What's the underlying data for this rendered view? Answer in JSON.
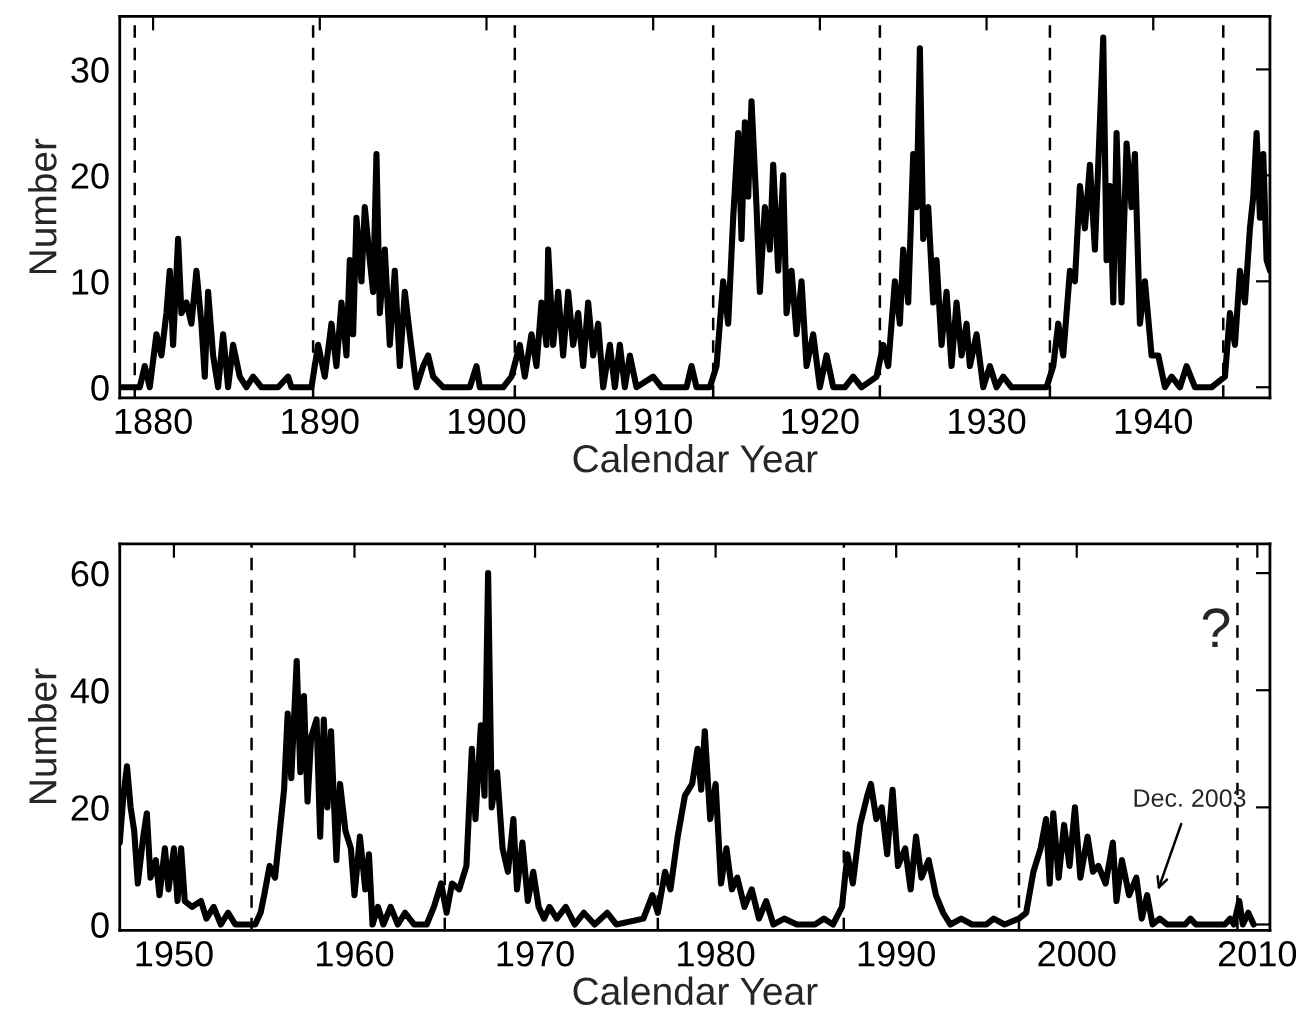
{
  "chart_data": [
    {
      "type": "line",
      "xlabel": "Calendar Year",
      "ylabel": "Number",
      "xlim": [
        1878,
        1947
      ],
      "ylim": [
        -1,
        35
      ],
      "xticks": [
        1880,
        1890,
        1900,
        1910,
        1920,
        1930,
        1940
      ],
      "yticks": [
        0,
        10,
        20,
        30
      ],
      "grid": false,
      "legend": false,
      "marker": "none",
      "line_style": "solid",
      "series": [
        {
          "color": "#000000",
          "x": [
            1878,
            1879.2,
            1879.5,
            1879.8,
            1880.2,
            1880.5,
            1880.8,
            1881.0,
            1881.2,
            1881.5,
            1881.7,
            1882.0,
            1882.3,
            1882.6,
            1882.9,
            1883.1,
            1883.3,
            1883.6,
            1883.9,
            1884.2,
            1884.5,
            1884.8,
            1885.2,
            1885.6,
            1886.0,
            1886.5,
            1887.5,
            1888.1,
            1888.3,
            1889.5,
            1889.9,
            1890.3,
            1890.7,
            1891.0,
            1891.3,
            1891.6,
            1891.8,
            1892.0,
            1892.2,
            1892.5,
            1892.7,
            1893.0,
            1893.2,
            1893.4,
            1893.6,
            1893.9,
            1894.2,
            1894.5,
            1894.8,
            1895.1,
            1895.4,
            1895.8,
            1896.2,
            1896.5,
            1896.8,
            1897.4,
            1899.0,
            1899.4,
            1899.6,
            1901.0,
            1901.5,
            1902.0,
            1902.3,
            1902.7,
            1903.0,
            1903.3,
            1903.6,
            1903.7,
            1904.0,
            1904.3,
            1904.6,
            1904.9,
            1905.2,
            1905.5,
            1905.8,
            1906.1,
            1906.4,
            1906.7,
            1907.0,
            1907.4,
            1907.7,
            1908.0,
            1908.3,
            1908.6,
            1909.0,
            1910.0,
            1910.5,
            1912.0,
            1912.3,
            1912.6,
            1913.4,
            1913.8,
            1914.2,
            1914.5,
            1914.8,
            1915.1,
            1915.3,
            1915.5,
            1915.7,
            1915.9,
            1916.2,
            1916.4,
            1916.7,
            1917.0,
            1917.2,
            1917.5,
            1917.8,
            1918.0,
            1918.3,
            1918.6,
            1918.9,
            1919.2,
            1919.6,
            1920.0,
            1920.4,
            1920.8,
            1921.5,
            1922.0,
            1922.5,
            1923.4,
            1923.8,
            1924.1,
            1924.5,
            1924.8,
            1925.0,
            1925.3,
            1925.6,
            1925.8,
            1926.0,
            1926.2,
            1926.5,
            1926.8,
            1927.0,
            1927.3,
            1927.6,
            1927.9,
            1928.2,
            1928.5,
            1928.8,
            1929.0,
            1929.4,
            1929.8,
            1930.2,
            1930.6,
            1931.0,
            1931.5,
            1933.6,
            1934.0,
            1934.3,
            1934.6,
            1935.0,
            1935.3,
            1935.6,
            1935.9,
            1936.2,
            1936.5,
            1936.7,
            1937.0,
            1937.2,
            1937.4,
            1937.6,
            1937.8,
            1938.1,
            1938.4,
            1938.7,
            1938.9,
            1939.2,
            1939.5,
            1939.9,
            1940.3,
            1940.7,
            1941.1,
            1941.6,
            1942.0,
            1942.5,
            1943.5,
            1944.3,
            1944.6,
            1944.9,
            1945.2,
            1945.5,
            1945.8,
            1946.0,
            1946.2,
            1946.4,
            1946.6,
            1946.8,
            1947.0
          ],
          "values": [
            0,
            0,
            2,
            0,
            5,
            3,
            7,
            11,
            4,
            14,
            7,
            8,
            6,
            11,
            6,
            1,
            9,
            3,
            0,
            5,
            0,
            4,
            1,
            0,
            1,
            0,
            0,
            1,
            0,
            0,
            4,
            1,
            6,
            2,
            8,
            3,
            12,
            5,
            16,
            10,
            17,
            12,
            9,
            22,
            7,
            13,
            4,
            11,
            2,
            9,
            5,
            0,
            2,
            3,
            1,
            0,
            0,
            2,
            0,
            0,
            1,
            4,
            1,
            5,
            2,
            8,
            4,
            13,
            4,
            9,
            3,
            9,
            4,
            7,
            2,
            8,
            3,
            6,
            0,
            4,
            0,
            4,
            0,
            3,
            0,
            1,
            0,
            0,
            2,
            0,
            0,
            2,
            10,
            6,
            16,
            24,
            14,
            25,
            18,
            27,
            17,
            9,
            17,
            13,
            21,
            11,
            20,
            7,
            11,
            5,
            10,
            2,
            5,
            0,
            3,
            0,
            0,
            1,
            0,
            1,
            4,
            2,
            10,
            6,
            13,
            8,
            22,
            17,
            32,
            14,
            17,
            8,
            12,
            4,
            9,
            2,
            8,
            3,
            6,
            2,
            5,
            0,
            2,
            0,
            1,
            0,
            0,
            2,
            6,
            3,
            11,
            10,
            19,
            15,
            21,
            13,
            21,
            33,
            12,
            19,
            8,
            24,
            8,
            23,
            17,
            22,
            6,
            10,
            3,
            3,
            0,
            1,
            0,
            2,
            0,
            0,
            1,
            7,
            4,
            11,
            8,
            15,
            18,
            24,
            16,
            22,
            12,
            11
          ]
        }
      ],
      "ref_lines": [
        {
          "axis": "x",
          "value": 1878.9,
          "color": "#000000",
          "line_style": "dashed"
        },
        {
          "axis": "x",
          "value": 1889.6,
          "color": "#000000",
          "line_style": "dashed"
        },
        {
          "axis": "x",
          "value": 1901.7,
          "color": "#000000",
          "line_style": "dashed"
        },
        {
          "axis": "x",
          "value": 1913.6,
          "color": "#000000",
          "line_style": "dashed"
        },
        {
          "axis": "x",
          "value": 1923.6,
          "color": "#000000",
          "line_style": "dashed"
        },
        {
          "axis": "x",
          "value": 1933.8,
          "color": "#000000",
          "line_style": "dashed"
        },
        {
          "axis": "x",
          "value": 1944.2,
          "color": "#000000",
          "line_style": "dashed"
        }
      ]
    },
    {
      "type": "line",
      "xlabel": "Calendar Year",
      "ylabel": "Number",
      "xlim": [
        1947,
        2010.7
      ],
      "ylim": [
        -1,
        65
      ],
      "xticks": [
        1950,
        1960,
        1970,
        1980,
        1990,
        2000,
        2010
      ],
      "yticks": [
        0,
        20,
        40,
        60
      ],
      "grid": false,
      "legend": false,
      "marker": "none",
      "line_style": "solid",
      "series": [
        {
          "color": "#000000",
          "x": [
            1947.0,
            1947.2,
            1947.4,
            1947.6,
            1947.8,
            1948.0,
            1948.3,
            1948.5,
            1948.7,
            1949.0,
            1949.2,
            1949.5,
            1949.7,
            1950.0,
            1950.2,
            1950.4,
            1950.6,
            1951.0,
            1951.5,
            1951.8,
            1952.2,
            1952.6,
            1953.0,
            1953.4,
            1954.5,
            1954.8,
            1955.0,
            1955.3,
            1955.6,
            1955.9,
            1956.1,
            1956.3,
            1956.5,
            1956.8,
            1957.0,
            1957.2,
            1957.4,
            1957.6,
            1957.9,
            1958.1,
            1958.3,
            1958.5,
            1958.7,
            1959.0,
            1959.2,
            1959.5,
            1959.8,
            1960.0,
            1960.3,
            1960.6,
            1960.8,
            1961.0,
            1961.3,
            1961.6,
            1962.0,
            1962.4,
            1962.8,
            1963.3,
            1964.0,
            1964.4,
            1964.8,
            1965.1,
            1965.4,
            1965.8,
            1966.2,
            1966.5,
            1966.7,
            1967.0,
            1967.2,
            1967.4,
            1967.6,
            1967.9,
            1968.2,
            1968.5,
            1968.8,
            1969.0,
            1969.3,
            1969.6,
            1969.9,
            1970.2,
            1970.5,
            1970.8,
            1971.2,
            1971.7,
            1972.2,
            1972.7,
            1973.3,
            1974.0,
            1974.5,
            1976.0,
            1976.5,
            1976.8,
            1977.2,
            1977.5,
            1977.9,
            1978.3,
            1978.7,
            1979.0,
            1979.2,
            1979.4,
            1979.7,
            1980.0,
            1980.3,
            1980.6,
            1980.9,
            1981.2,
            1981.6,
            1982.0,
            1982.4,
            1982.8,
            1983.2,
            1983.8,
            1984.5,
            1985.5,
            1986.0,
            1986.5,
            1987.0,
            1987.3,
            1987.6,
            1988.0,
            1988.4,
            1988.6,
            1988.9,
            1989.2,
            1989.5,
            1989.8,
            1990.1,
            1990.5,
            1990.8,
            1991.1,
            1991.4,
            1991.8,
            1992.2,
            1992.6,
            1993.0,
            1993.6,
            1994.2,
            1995.0,
            1995.4,
            1996.0,
            1996.8,
            1997.2,
            1997.6,
            1998.0,
            1998.3,
            1998.5,
            1998.7,
            1999.0,
            1999.3,
            1999.6,
            1999.9,
            2000.2,
            2000.6,
            2000.9,
            2001.2,
            2001.6,
            2002.0,
            2002.2,
            2002.5,
            2002.9,
            2003.3,
            2003.6,
            2003.9,
            2004.2,
            2004.6,
            2005.0,
            2006.0,
            2006.3,
            2006.6,
            2008.2,
            2008.5,
            2008.7,
            2009.0,
            2009.2,
            2009.5,
            2009.8
          ],
          "values": [
            14,
            22,
            27,
            20,
            16,
            7,
            15,
            19,
            8,
            11,
            5,
            13,
            6,
            13,
            4,
            13,
            4,
            3,
            4,
            1,
            3,
            0,
            2,
            0,
            0,
            2,
            5,
            10,
            8,
            17,
            23,
            36,
            25,
            45,
            26,
            39,
            21,
            32,
            35,
            15,
            35,
            20,
            33,
            11,
            24,
            16,
            13,
            5,
            15,
            6,
            12,
            0,
            3,
            0,
            3,
            0,
            2,
            0,
            0,
            3,
            7,
            2,
            7,
            6,
            10,
            30,
            18,
            34,
            22,
            60,
            20,
            26,
            13,
            9,
            18,
            6,
            14,
            4,
            9,
            3,
            1,
            3,
            1,
            3,
            0,
            2,
            0,
            2,
            0,
            1,
            5,
            2,
            9,
            6,
            15,
            22,
            24,
            30,
            23,
            33,
            18,
            24,
            7,
            13,
            6,
            8,
            3,
            6,
            1,
            4,
            0,
            1,
            0,
            0,
            1,
            0,
            3,
            12,
            7,
            17,
            22,
            24,
            18,
            20,
            12,
            23,
            10,
            13,
            6,
            15,
            8,
            11,
            5,
            2,
            0,
            1,
            0,
            0,
            1,
            0,
            1,
            2,
            9,
            13,
            18,
            7,
            19,
            8,
            17,
            10,
            20,
            8,
            15,
            9,
            10,
            7,
            14,
            4,
            11,
            5,
            8,
            1,
            5,
            0,
            1,
            0,
            0,
            1,
            0,
            0,
            1,
            0,
            4,
            0,
            2,
            0
          ]
        }
      ],
      "ref_lines": [
        {
          "axis": "x",
          "value": 1954.3,
          "color": "#000000",
          "line_style": "dashed"
        },
        {
          "axis": "x",
          "value": 1965.0,
          "color": "#000000",
          "line_style": "dashed"
        },
        {
          "axis": "x",
          "value": 1976.8,
          "color": "#000000",
          "line_style": "dashed"
        },
        {
          "axis": "x",
          "value": 1987.1,
          "color": "#000000",
          "line_style": "dashed"
        },
        {
          "axis": "x",
          "value": 1996.8,
          "color": "#000000",
          "line_style": "dashed"
        },
        {
          "axis": "x",
          "value": 2008.9,
          "color": "#000000",
          "line_style": "dashed"
        }
      ],
      "annotations": [
        "?",
        {
          "text": "Dec. 2003",
          "x": 2004.4,
          "y": 5
        }
      ]
    }
  ]
}
